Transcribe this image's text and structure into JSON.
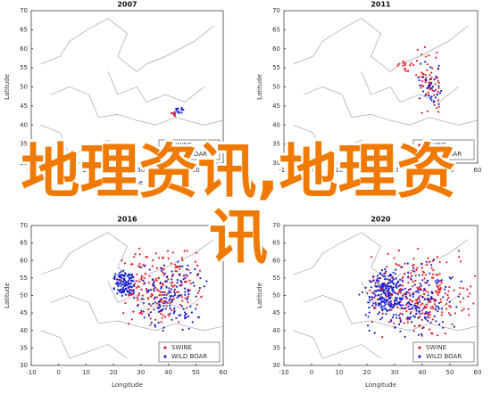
{
  "panels": [
    {
      "title": "2007"
    },
    {
      "title": "2011"
    },
    {
      "title": "2016"
    },
    {
      "title": "2020"
    }
  ],
  "axes": {
    "x_label": "Longitude",
    "y_label": "Latitude",
    "xticks": [
      -10,
      0,
      10,
      20,
      30,
      40,
      50,
      60
    ],
    "yticks": [
      70,
      65,
      60,
      55,
      50,
      45,
      40,
      35,
      30
    ]
  },
  "legend": [
    {
      "label": "SWINE",
      "color": "#e8202a"
    },
    {
      "label": "WILD BOAR",
      "color": "#1b22d6"
    }
  ],
  "overlay": {
    "text": "地理资讯,地理资讯"
  }
}
